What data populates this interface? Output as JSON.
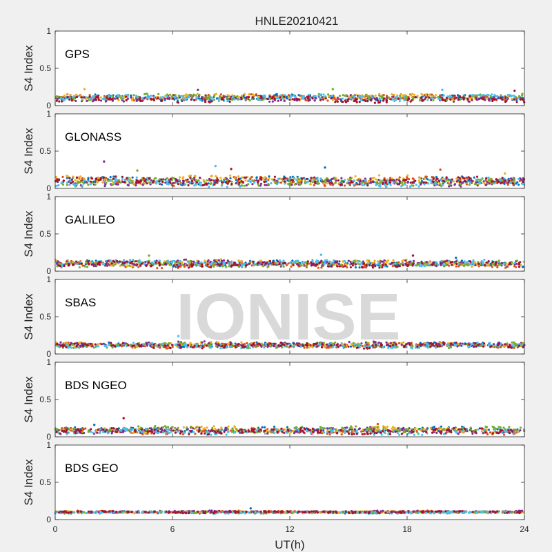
{
  "figure": {
    "title": "HNLE20210421",
    "xlabel": "UT(h)",
    "watermark": "IONISE"
  },
  "chart_data": [
    {
      "type": "scatter",
      "panel_label": "GPS",
      "ylabel": "S4 Index",
      "xlim": [
        0,
        24
      ],
      "ylim": [
        0,
        1
      ],
      "xticks": [
        0,
        6,
        12,
        18,
        24
      ],
      "yticks": [
        0,
        0.5,
        1
      ],
      "ytick_labels": [
        "0",
        "0.5",
        "1"
      ],
      "baseline": 0.1,
      "spread": 0.03,
      "spikes": [
        [
          1.5,
          0.22
        ],
        [
          7.3,
          0.21
        ],
        [
          14.2,
          0.22
        ],
        [
          19.8,
          0.21
        ],
        [
          23.5,
          0.2
        ]
      ]
    },
    {
      "type": "scatter",
      "panel_label": "GLONASS",
      "ylabel": "S4 Index",
      "xlim": [
        0,
        24
      ],
      "ylim": [
        0,
        1
      ],
      "xticks": [
        0,
        6,
        12,
        18,
        24
      ],
      "yticks": [
        0,
        0.5,
        1
      ],
      "ytick_labels": [
        "0",
        "0.5",
        "1"
      ],
      "baseline": 0.1,
      "spread": 0.04,
      "spikes": [
        [
          2.5,
          0.36
        ],
        [
          4.2,
          0.24
        ],
        [
          8.2,
          0.3
        ],
        [
          9.0,
          0.26
        ],
        [
          13.8,
          0.28
        ],
        [
          19.7,
          0.25
        ],
        [
          23.0,
          0.2
        ]
      ]
    },
    {
      "type": "scatter",
      "panel_label": "GALILEO",
      "ylabel": "S4 Index",
      "xlim": [
        0,
        24
      ],
      "ylim": [
        0,
        1
      ],
      "xticks": [
        0,
        6,
        12,
        18,
        24
      ],
      "yticks": [
        0,
        0.5,
        1
      ],
      "ytick_labels": [
        "0",
        "0.5",
        "1"
      ],
      "baseline": 0.1,
      "spread": 0.03,
      "spikes": [
        [
          4.8,
          0.21
        ],
        [
          13.6,
          0.22
        ],
        [
          18.3,
          0.21
        ],
        [
          20.5,
          0.18
        ]
      ]
    },
    {
      "type": "scatter",
      "panel_label": "SBAS",
      "ylabel": "S4 Index",
      "xlim": [
        0,
        24
      ],
      "ylim": [
        0,
        1
      ],
      "xticks": [
        0,
        6,
        12,
        18,
        24
      ],
      "yticks": [
        0,
        0.5,
        1
      ],
      "ytick_labels": [
        "0",
        "0.5",
        "1"
      ],
      "baseline": 0.12,
      "spread": 0.025,
      "spikes": [
        [
          6.3,
          0.24
        ],
        [
          7.8,
          0.24
        ],
        [
          8.0,
          0.22
        ]
      ]
    },
    {
      "type": "scatter",
      "panel_label": "BDS NGEO",
      "ylabel": "S4 Index",
      "xlim": [
        0,
        24
      ],
      "ylim": [
        0,
        1
      ],
      "xticks": [
        0,
        6,
        12,
        18,
        24
      ],
      "yticks": [
        0,
        0.5,
        1
      ],
      "ytick_labels": [
        "0",
        "0.5",
        "1"
      ],
      "baseline": 0.08,
      "spread": 0.03,
      "spikes": [
        [
          3.5,
          0.25
        ],
        [
          2.0,
          0.16
        ],
        [
          16.5,
          0.17
        ]
      ]
    },
    {
      "type": "scatter",
      "panel_label": "BDS GEO",
      "ylabel": "S4 Index",
      "xlim": [
        0,
        24
      ],
      "ylim": [
        0,
        1
      ],
      "xticks": [
        0,
        6,
        12,
        18,
        24
      ],
      "yticks": [
        0,
        0.5,
        1
      ],
      "ytick_labels": [
        "0",
        "0.5",
        "1"
      ],
      "baseline": 0.1,
      "spread": 0.01,
      "spikes": [
        [
          10.0,
          0.15
        ]
      ]
    }
  ],
  "colors": {
    "series": [
      "#0072BD",
      "#D95319",
      "#EDB120",
      "#7E2F8E",
      "#77AC30",
      "#4DBEEE",
      "#A2142F"
    ],
    "watermark": "#d9d9d9",
    "axes_bg": "#ffffff",
    "figure_bg": "#f0f0f0"
  }
}
